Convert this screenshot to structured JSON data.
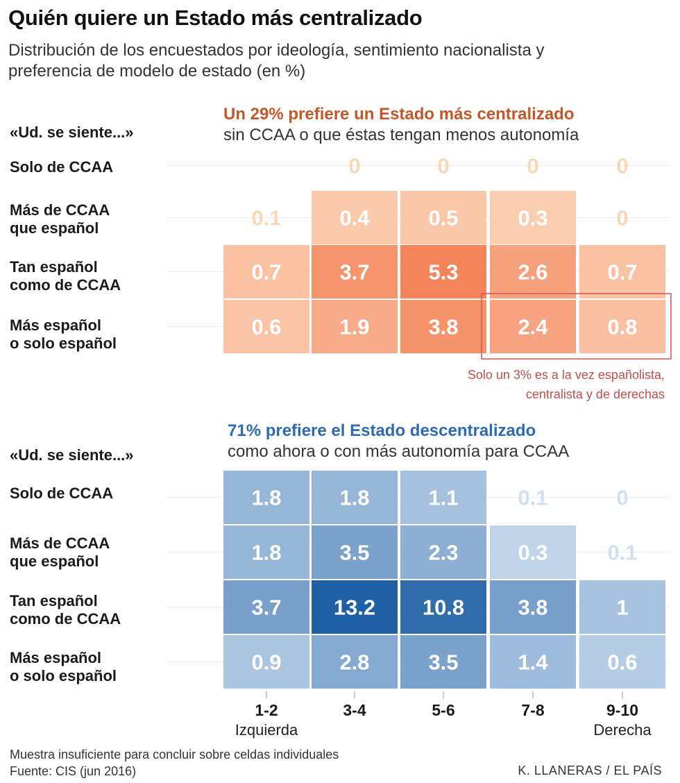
{
  "title": "Quién quiere un Estado más centralizado",
  "subtitle": "Distribución de los encuestados por ideología, sentimiento nacionalista y preferencia de modelo de estado (en %)",
  "chart_data": [
    {
      "type": "heatmap",
      "name": "centralizado",
      "heading": "Un 29% prefiere un Estado más centralizado",
      "subheading": "sin CCAA o que éstas tengan menos autonomía",
      "row_axis_title": "«Ud. se siente...»",
      "rows": [
        "Solo de CCAA",
        "Más de CCAA que español",
        "Tan español como de CCAA",
        "Más español o solo español"
      ],
      "row_label_lines": [
        [
          "Solo de CCAA"
        ],
        [
          "Más de CCAA",
          "que español"
        ],
        [
          "Tan español",
          "como de CCAA"
        ],
        [
          "Más español",
          "o solo español"
        ]
      ],
      "columns": [
        "1-2",
        "3-4",
        "5-6",
        "7-8",
        "9-10"
      ],
      "values": [
        [
          0,
          0,
          0,
          0,
          0
        ],
        [
          0.1,
          0.4,
          0.5,
          0.3,
          0
        ],
        [
          0.7,
          3.7,
          5.3,
          2.6,
          0.7
        ],
        [
          0.6,
          1.9,
          3.8,
          2.4,
          0.8
        ]
      ],
      "labels": [
        [
          "",
          "0",
          "0",
          "0",
          "0"
        ],
        [
          "0.1",
          "0.4",
          "0.5",
          "0.3",
          "0"
        ],
        [
          "0.7",
          "3.7",
          "5.3",
          "2.6",
          "0.7"
        ],
        [
          "0.6",
          "1.9",
          "3.8",
          "2.4",
          "0.8"
        ]
      ],
      "color_low": "#fde4cc",
      "color_high": "#f4845a",
      "faint_color": "#f9d8b8",
      "highlight_cells": [
        [
          3,
          3
        ],
        [
          3,
          4
        ]
      ],
      "highlight_color": "#d9534f",
      "annotation": [
        "Solo un 3% es a la vez españolista,",
        "centralista y de derechas"
      ]
    },
    {
      "type": "heatmap",
      "name": "descentralizado",
      "heading": "71% prefiere el Estado descentralizado",
      "subheading": "como ahora o con más autonomía para CCAA",
      "row_axis_title": "«Ud. se siente...»",
      "rows": [
        "Solo de CCAA",
        "Más de CCAA que español",
        "Tan español como de CCAA",
        "Más español o solo español"
      ],
      "row_label_lines": [
        [
          "Solo de CCAA"
        ],
        [
          "Más de CCAA",
          "que español"
        ],
        [
          "Tan español",
          "como de CCAA"
        ],
        [
          "Más español",
          "o solo español"
        ]
      ],
      "columns": [
        "1-2",
        "3-4",
        "5-6",
        "7-8",
        "9-10"
      ],
      "values": [
        [
          1.8,
          1.8,
          1.1,
          0.1,
          0
        ],
        [
          1.8,
          3.5,
          2.3,
          0.3,
          0.1
        ],
        [
          3.7,
          13.2,
          10.8,
          3.8,
          1
        ],
        [
          0.9,
          2.8,
          3.5,
          1.4,
          0.6
        ]
      ],
      "labels": [
        [
          "1.8",
          "1.8",
          "1.1",
          "0.1",
          "0"
        ],
        [
          "1.8",
          "3.5",
          "2.3",
          "0.3",
          "0.1"
        ],
        [
          "3.7",
          "13.2",
          "10.8",
          "3.8",
          "1"
        ],
        [
          "0.9",
          "2.8",
          "3.5",
          "1.4",
          "0.6"
        ]
      ],
      "color_low": "#dce9f6",
      "color_high": "#1f5fa3",
      "faint_color": "#cfe0f1"
    }
  ],
  "x_axis": {
    "ticks": [
      "1-2",
      "3-4",
      "5-6",
      "7-8",
      "9-10"
    ],
    "left_label": "Izquierda",
    "right_label": "Derecha"
  },
  "footer": {
    "note": "Muestra insuficiente para concluir sobre celdas individuales",
    "source": "Fuente: CIS (jun 2016)",
    "credit": "K. LLANERAS / EL PAÍS"
  }
}
